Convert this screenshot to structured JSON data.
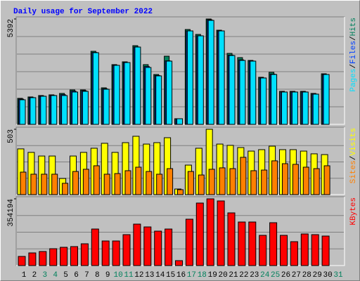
{
  "chart_data": [
    {
      "type": "bar",
      "title": "Daily usage for September 2022",
      "legend_separator": "/",
      "ylim": [
        0,
        5392
      ],
      "yticks": [
        5392
      ],
      "series": [
        {
          "name": "Hits",
          "color": "#00805c",
          "values": [
            1330,
            1402,
            1474,
            1510,
            1582,
            1761,
            1761,
            3739,
            1869,
            3056,
            3199,
            4026,
            3056,
            2552,
            3487,
            288,
            4853,
            4601,
            5392,
            4817,
            3631,
            3415,
            3271,
            2409,
            2660,
            1690,
            1690,
            1690,
            1582,
            2588,
            null
          ]
        },
        {
          "name": "Files",
          "color": "#0040ff",
          "values": [
            1290,
            1370,
            1440,
            1480,
            1520,
            1700,
            1720,
            3680,
            1820,
            3020,
            3160,
            3960,
            2960,
            2500,
            3250,
            280,
            4780,
            4530,
            5350,
            4780,
            3540,
            3300,
            3240,
            2370,
            2570,
            1650,
            1660,
            1660,
            1550,
            2550,
            null
          ]
        },
        {
          "name": "Pages",
          "color": "#00e0ff",
          "values": [
            1258,
            1366,
            1438,
            1474,
            1474,
            1654,
            1690,
            3667,
            1797,
            3020,
            3163,
            3955,
            2912,
            2480,
            3236,
            288,
            4781,
            4529,
            5320,
            4781,
            3523,
            3271,
            3235,
            2373,
            2552,
            1654,
            1654,
            1654,
            1546,
            2552,
            null
          ]
        }
      ]
    },
    {
      "type": "bar",
      "legend_separator": "/",
      "ylim": [
        0,
        503
      ],
      "yticks": [
        503
      ],
      "series": [
        {
          "name": "Visits",
          "color": "#ffff00",
          "values": [
            352,
            325,
            297,
            297,
            124,
            297,
            325,
            357,
            395,
            325,
            400,
            449,
            389,
            400,
            438,
            43,
            227,
            357,
            503,
            389,
            379,
            362,
            335,
            346,
            373,
            346,
            346,
            335,
            314,
            308,
            null
          ]
        },
        {
          "name": "Sites",
          "color": "#ff8000",
          "values": [
            173,
            157,
            157,
            157,
            87,
            178,
            195,
            222,
            157,
            162,
            184,
            211,
            178,
            157,
            200,
            38,
            178,
            151,
            195,
            206,
            200,
            287,
            184,
            189,
            260,
            238,
            233,
            211,
            200,
            222,
            null
          ]
        }
      ]
    },
    {
      "type": "bar",
      "ylim": [
        0,
        354194
      ],
      "yticks": [
        354194
      ],
      "series": [
        {
          "name": "KBytes",
          "color": "#ff0000",
          "values": [
            48470,
            67100,
            74560,
            89470,
            96930,
            100660,
            115570,
            193860,
            130480,
            130480,
            164030,
            219950,
            205040,
            182670,
            193860,
            26100,
            246050,
            331790,
            354194,
            342980,
            279600,
            231130,
            231130,
            160300,
            227410,
            160300,
            126750,
            167760,
            164030,
            156580,
            null
          ]
        }
      ],
      "categories": [
        "1",
        "2",
        "3",
        "4",
        "5",
        "6",
        "7",
        "8",
        "9",
        "10",
        "11",
        "12",
        "13",
        "14",
        "15",
        "16",
        "17",
        "18",
        "19",
        "20",
        "21",
        "22",
        "23",
        "24",
        "25",
        "26",
        "27",
        "28",
        "29",
        "30",
        "31"
      ],
      "category_colors": [
        "#000000",
        "#000000",
        "#00805c",
        "#00805c",
        "#000000",
        "#000000",
        "#000000",
        "#000000",
        "#000000",
        "#00805c",
        "#00805c",
        "#000000",
        "#000000",
        "#000000",
        "#000000",
        "#000000",
        "#00805c",
        "#00805c",
        "#000000",
        "#000000",
        "#000000",
        "#000000",
        "#000000",
        "#00805c",
        "#00805c",
        "#000000",
        "#000000",
        "#000000",
        "#000000",
        "#000000",
        "#00805c"
      ]
    }
  ]
}
